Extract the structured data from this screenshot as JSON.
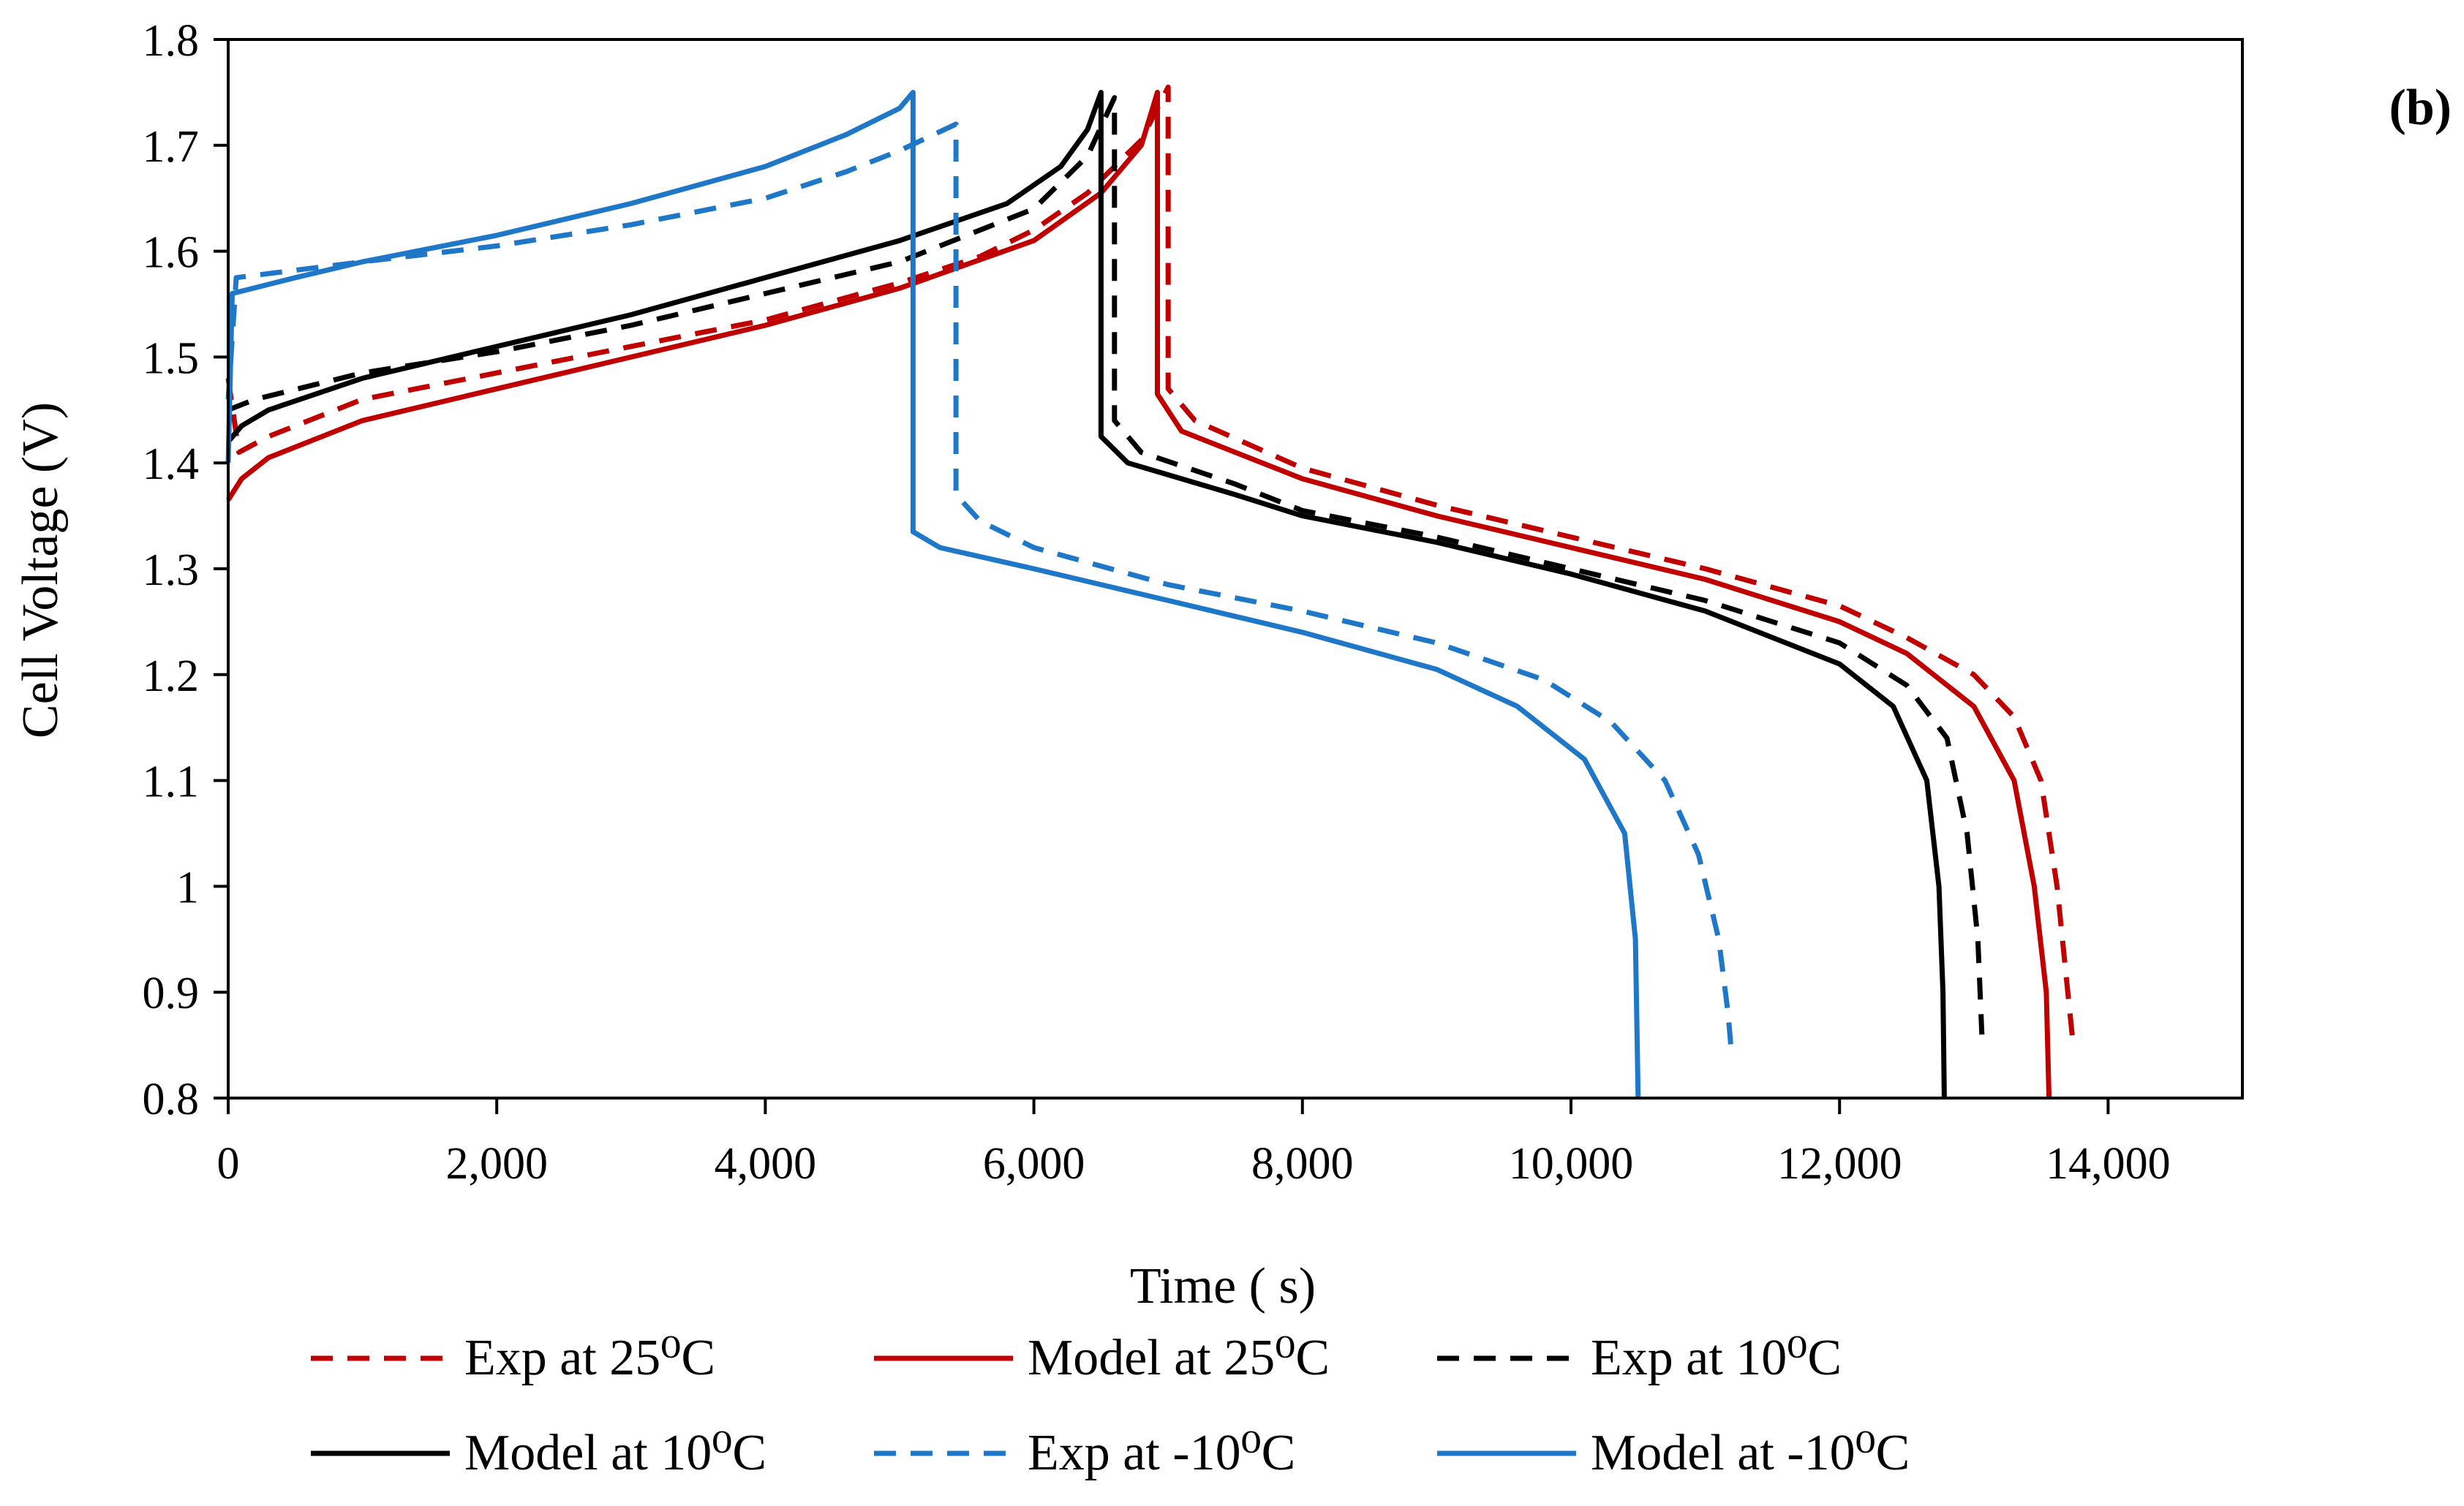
{
  "chart_data": {
    "type": "line",
    "panel_label": "(b)",
    "xlabel": "Time ( s)",
    "ylabel": "Cell Voltage (V)",
    "xlim": [
      0,
      15000
    ],
    "ylim": [
      0.8,
      1.8
    ],
    "x_ticks": [
      0,
      2000,
      4000,
      6000,
      8000,
      10000,
      12000,
      14000
    ],
    "x_tick_labels": [
      "0",
      "2,000",
      "4,000",
      "6,000",
      "8,000",
      "10,000",
      "12,000",
      "14,000"
    ],
    "y_ticks": [
      0.8,
      0.9,
      1.0,
      1.1,
      1.2,
      1.3,
      1.4,
      1.5,
      1.6,
      1.7,
      1.8
    ],
    "y_tick_labels": [
      "0.8",
      "0.9",
      "1",
      "1.1",
      "1.2",
      "1.3",
      "1.4",
      "1.5",
      "1.6",
      "1.7",
      "1.8"
    ],
    "grid": false,
    "legend_position": "bottom",
    "series": [
      {
        "name": "Exp at 25⁰C",
        "color": "#c00000",
        "style": "dashed",
        "points": [
          [
            0,
            1.48
          ],
          [
            80,
            1.41
          ],
          [
            300,
            1.425
          ],
          [
            1000,
            1.46
          ],
          [
            2000,
            1.485
          ],
          [
            3000,
            1.51
          ],
          [
            4000,
            1.535
          ],
          [
            5000,
            1.57
          ],
          [
            5600,
            1.595
          ],
          [
            6000,
            1.62
          ],
          [
            6400,
            1.655
          ],
          [
            6800,
            1.705
          ],
          [
            7000,
            1.755
          ],
          [
            7000,
            1.47
          ],
          [
            7200,
            1.44
          ],
          [
            8000,
            1.395
          ],
          [
            9000,
            1.36
          ],
          [
            10000,
            1.33
          ],
          [
            11000,
            1.3
          ],
          [
            12000,
            1.265
          ],
          [
            12500,
            1.235
          ],
          [
            13000,
            1.2
          ],
          [
            13300,
            1.16
          ],
          [
            13500,
            1.1
          ],
          [
            13620,
            1.0
          ],
          [
            13700,
            0.9
          ],
          [
            13740,
            0.85
          ]
        ]
      },
      {
        "name": "Model at 25⁰C",
        "color": "#c00000",
        "style": "solid",
        "points": [
          [
            0,
            1.365
          ],
          [
            100,
            1.385
          ],
          [
            300,
            1.405
          ],
          [
            1000,
            1.44
          ],
          [
            2000,
            1.47
          ],
          [
            3000,
            1.5
          ],
          [
            4000,
            1.53
          ],
          [
            5000,
            1.565
          ],
          [
            6000,
            1.61
          ],
          [
            6500,
            1.655
          ],
          [
            6800,
            1.7
          ],
          [
            6920,
            1.75
          ],
          [
            6920,
            1.465
          ],
          [
            7100,
            1.43
          ],
          [
            8000,
            1.385
          ],
          [
            9000,
            1.35
          ],
          [
            10000,
            1.32
          ],
          [
            11000,
            1.29
          ],
          [
            12000,
            1.25
          ],
          [
            12500,
            1.22
          ],
          [
            13000,
            1.17
          ],
          [
            13300,
            1.1
          ],
          [
            13450,
            1.0
          ],
          [
            13540,
            0.9
          ],
          [
            13560,
            0.8
          ]
        ]
      },
      {
        "name": "Exp at 10⁰C",
        "color": "#000000",
        "style": "dashed",
        "points": [
          [
            0,
            1.45
          ],
          [
            200,
            1.46
          ],
          [
            1000,
            1.485
          ],
          [
            2000,
            1.505
          ],
          [
            3000,
            1.53
          ],
          [
            4000,
            1.56
          ],
          [
            5000,
            1.59
          ],
          [
            6000,
            1.64
          ],
          [
            6400,
            1.69
          ],
          [
            6600,
            1.745
          ],
          [
            6600,
            1.44
          ],
          [
            6800,
            1.41
          ],
          [
            7500,
            1.38
          ],
          [
            8000,
            1.355
          ],
          [
            9000,
            1.33
          ],
          [
            10000,
            1.3
          ],
          [
            11000,
            1.27
          ],
          [
            12000,
            1.23
          ],
          [
            12500,
            1.19
          ],
          [
            12800,
            1.14
          ],
          [
            12950,
            1.05
          ],
          [
            13030,
            0.95
          ],
          [
            13060,
            0.86
          ]
        ]
      },
      {
        "name": "Model at 10⁰C",
        "color": "#000000",
        "style": "solid",
        "points": [
          [
            0,
            1.42
          ],
          [
            100,
            1.435
          ],
          [
            300,
            1.45
          ],
          [
            1000,
            1.48
          ],
          [
            2000,
            1.51
          ],
          [
            3000,
            1.54
          ],
          [
            4000,
            1.575
          ],
          [
            5000,
            1.61
          ],
          [
            5800,
            1.645
          ],
          [
            6200,
            1.68
          ],
          [
            6400,
            1.715
          ],
          [
            6500,
            1.75
          ],
          [
            6500,
            1.425
          ],
          [
            6700,
            1.4
          ],
          [
            7500,
            1.37
          ],
          [
            8000,
            1.35
          ],
          [
            9000,
            1.325
          ],
          [
            10000,
            1.295
          ],
          [
            11000,
            1.26
          ],
          [
            12000,
            1.21
          ],
          [
            12400,
            1.17
          ],
          [
            12650,
            1.1
          ],
          [
            12740,
            1.0
          ],
          [
            12770,
            0.9
          ],
          [
            12780,
            0.8
          ]
        ]
      },
      {
        "name": "Exp at -10⁰C",
        "color": "#1f77c8",
        "style": "dashed",
        "points": [
          [
            0,
            1.46
          ],
          [
            60,
            1.575
          ],
          [
            1000,
            1.59
          ],
          [
            2000,
            1.605
          ],
          [
            3000,
            1.625
          ],
          [
            4000,
            1.65
          ],
          [
            4600,
            1.675
          ],
          [
            5000,
            1.695
          ],
          [
            5420,
            1.72
          ],
          [
            5420,
            1.37
          ],
          [
            5600,
            1.345
          ],
          [
            6000,
            1.32
          ],
          [
            7000,
            1.285
          ],
          [
            8000,
            1.26
          ],
          [
            9000,
            1.23
          ],
          [
            9800,
            1.195
          ],
          [
            10300,
            1.155
          ],
          [
            10700,
            1.1
          ],
          [
            10950,
            1.03
          ],
          [
            11100,
            0.95
          ],
          [
            11170,
            0.88
          ],
          [
            11190,
            0.85
          ]
        ]
      },
      {
        "name": "Model at -10⁰C",
        "color": "#1f77c8",
        "style": "solid",
        "points": [
          [
            0,
            1.4
          ],
          [
            30,
            1.56
          ],
          [
            500,
            1.575
          ],
          [
            1000,
            1.59
          ],
          [
            2000,
            1.615
          ],
          [
            3000,
            1.645
          ],
          [
            4000,
            1.68
          ],
          [
            4600,
            1.71
          ],
          [
            5000,
            1.735
          ],
          [
            5100,
            1.75
          ],
          [
            5100,
            1.335
          ],
          [
            5300,
            1.32
          ],
          [
            6000,
            1.3
          ],
          [
            7000,
            1.27
          ],
          [
            8000,
            1.24
          ],
          [
            9000,
            1.205
          ],
          [
            9600,
            1.17
          ],
          [
            10100,
            1.12
          ],
          [
            10400,
            1.05
          ],
          [
            10480,
            0.95
          ],
          [
            10500,
            0.8
          ]
        ]
      }
    ]
  }
}
